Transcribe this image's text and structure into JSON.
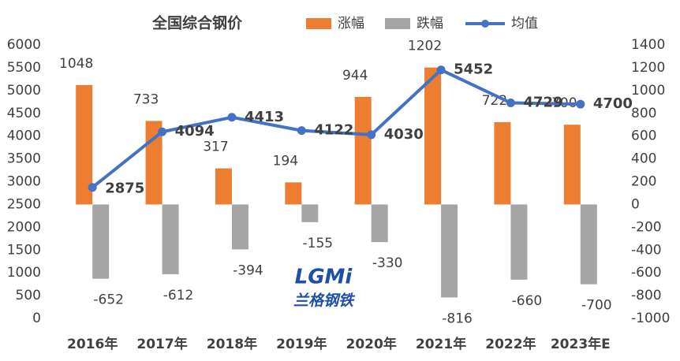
{
  "chart_data": {
    "type": "bar",
    "title": "全国综合钢价",
    "categories": [
      "2016年",
      "2017年",
      "2018年",
      "2019年",
      "2020年",
      "2021年",
      "2022年",
      "2023年E"
    ],
    "series": [
      {
        "name": "涨幅",
        "color": "#ED7D31",
        "type": "bar",
        "axis": "y2",
        "values": [
          1048,
          733,
          317,
          194,
          944,
          1202,
          722,
          700
        ]
      },
      {
        "name": "跌幅",
        "color": "#A5A5A5",
        "type": "bar",
        "axis": "y2",
        "values": [
          -652,
          -612,
          -394,
          -155,
          -330,
          -816,
          -660,
          -700
        ]
      },
      {
        "name": "均值",
        "color": "#4472C4",
        "type": "line",
        "values": [
          2875,
          4094,
          4413,
          4122,
          4030,
          5452,
          4729,
          4700
        ]
      }
    ],
    "ylim": [
      0,
      6000
    ],
    "yticks": [
      0,
      500,
      1000,
      1500,
      2000,
      2500,
      3000,
      3500,
      4000,
      4500,
      5000,
      5500,
      6000
    ],
    "y2lim": [
      -1000,
      1400
    ],
    "y2ticks": [
      -1000,
      -800,
      -600,
      -400,
      -200,
      0,
      200,
      400,
      600,
      800,
      1000,
      1200,
      1400
    ],
    "watermark": {
      "logo": "LGMi",
      "text": "兰格钢铁"
    }
  }
}
